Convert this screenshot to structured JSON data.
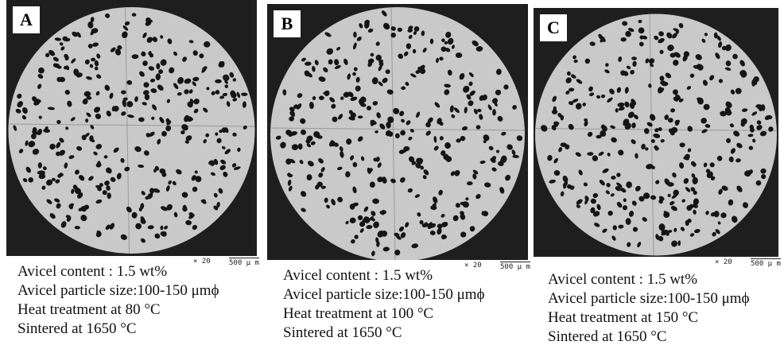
{
  "panels": [
    {
      "label": "A",
      "magnification": "× 20",
      "scale_bar": "500 μ m",
      "caption": [
        "Avicel content : 1.5 wt%",
        "Avicel particle size:100-150 μmϕ",
        "Heat treatment at 80 °C",
        "Sintered at 1650 °C"
      ]
    },
    {
      "label": "B",
      "magnification": "× 20",
      "scale_bar": "500 μ m",
      "caption": [
        "Avicel content : 1.5 wt%",
        "Avicel particle size:100-150 μmϕ",
        "Heat treatment at 100 °C",
        "Sintered at 1650 °C"
      ]
    },
    {
      "label": "C",
      "magnification": "× 20",
      "scale_bar": "500 μ m",
      "caption": [
        "Avicel content : 1.5 wt%",
        "Avicel particle size:100-150 μmϕ",
        "Heat treatment at 150 °C",
        "Sintered at 1650 °C"
      ]
    }
  ]
}
